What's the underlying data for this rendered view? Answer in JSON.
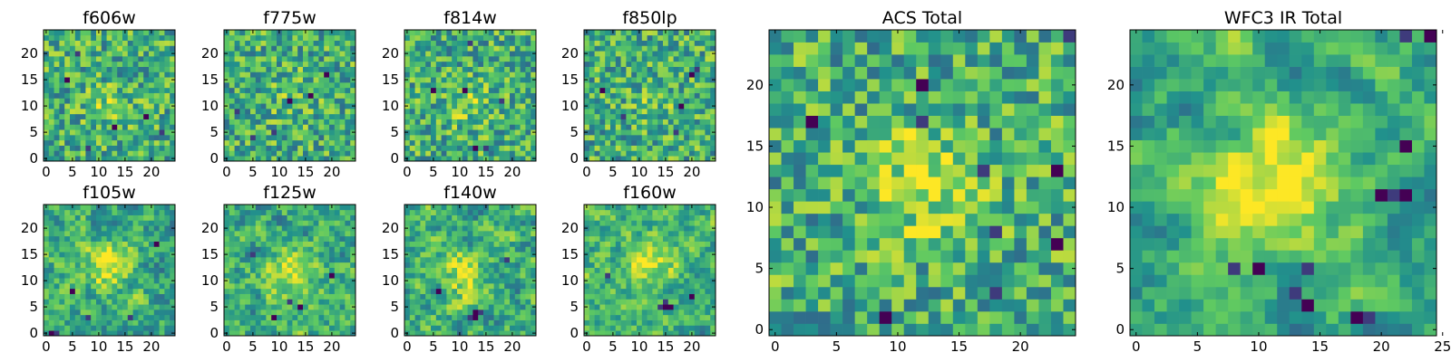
{
  "figure": {
    "background": "#ffffff",
    "colormap": "viridis",
    "colormap_stops": [
      "#440154",
      "#3b528b",
      "#21918c",
      "#5ec962",
      "#fde725"
    ]
  },
  "chart_data": [
    {
      "type": "heatmap",
      "title": "f606w",
      "grid_size": 25,
      "xticks": [
        0,
        5,
        10,
        15,
        20
      ],
      "yticks": [
        0,
        5,
        10,
        15,
        20
      ],
      "xlim": [
        0,
        24
      ],
      "ylim": [
        0,
        24
      ],
      "seed": 11,
      "smooth": 0,
      "blob": [
        12,
        10,
        3,
        0.15
      ],
      "dark_spots": [
        [
          19,
          8
        ],
        [
          8,
          2
        ],
        [
          13,
          6
        ],
        [
          22,
          5
        ],
        [
          4,
          15
        ],
        [
          6,
          20
        ]
      ]
    },
    {
      "type": "heatmap",
      "title": "f775w",
      "grid_size": 25,
      "xticks": [
        0,
        5,
        10,
        15,
        20
      ],
      "yticks": [
        0,
        5,
        10,
        15,
        20
      ],
      "xlim": [
        0,
        24
      ],
      "ylim": [
        0,
        24
      ],
      "seed": 23,
      "smooth": 0,
      "blob": [
        12,
        12,
        3,
        0.1
      ],
      "dark_spots": [
        [
          16,
          12
        ],
        [
          5,
          4
        ],
        [
          12,
          11
        ],
        [
          2,
          9
        ],
        [
          19,
          16
        ],
        [
          9,
          5
        ]
      ]
    },
    {
      "type": "heatmap",
      "title": "f814w",
      "grid_size": 25,
      "xticks": [
        0,
        5,
        10,
        15,
        20
      ],
      "yticks": [
        0,
        5,
        10,
        15,
        20
      ],
      "xlim": [
        0,
        24
      ],
      "ylim": [
        0,
        24
      ],
      "seed": 37,
      "smooth": 0,
      "blob": [
        12,
        10,
        3,
        0.15
      ],
      "dark_spots": [
        [
          13,
          2
        ],
        [
          15,
          2
        ],
        [
          11,
          13
        ],
        [
          18,
          11
        ],
        [
          5,
          13
        ],
        [
          12,
          22
        ]
      ]
    },
    {
      "type": "heatmap",
      "title": "f850lp",
      "grid_size": 25,
      "xticks": [
        0,
        5,
        10,
        15,
        20
      ],
      "yticks": [
        0,
        5,
        10,
        15,
        20
      ],
      "xlim": [
        0,
        24
      ],
      "ylim": [
        0,
        24
      ],
      "seed": 41,
      "smooth": 0,
      "blob": [
        13,
        11,
        3,
        0.1
      ],
      "dark_spots": [
        [
          20,
          16
        ],
        [
          21,
          17
        ],
        [
          18,
          10
        ],
        [
          7,
          8
        ],
        [
          3,
          13
        ],
        [
          17,
          5
        ]
      ]
    },
    {
      "type": "heatmap",
      "title": "f105w",
      "grid_size": 25,
      "xticks": [
        0,
        5,
        10,
        15,
        20
      ],
      "yticks": [
        0,
        5,
        10,
        15,
        20
      ],
      "xlim": [
        0,
        24
      ],
      "ylim": [
        0,
        24
      ],
      "seed": 53,
      "smooth": 1,
      "blob": [
        12,
        13,
        3,
        0.35
      ],
      "dark_spots": [
        [
          1,
          0
        ],
        [
          2,
          0
        ],
        [
          5,
          8
        ],
        [
          16,
          3
        ],
        [
          21,
          17
        ],
        [
          8,
          3
        ]
      ]
    },
    {
      "type": "heatmap",
      "title": "f125w",
      "grid_size": 25,
      "xticks": [
        0,
        5,
        10,
        15,
        20
      ],
      "yticks": [
        0,
        5,
        10,
        15,
        20
      ],
      "xlim": [
        0,
        24
      ],
      "ylim": [
        0,
        24
      ],
      "seed": 61,
      "smooth": 1,
      "blob": [
        12,
        11,
        3,
        0.35
      ],
      "dark_spots": [
        [
          9,
          3
        ],
        [
          12,
          6
        ],
        [
          14,
          5
        ],
        [
          5,
          15
        ],
        [
          20,
          11
        ]
      ]
    },
    {
      "type": "heatmap",
      "title": "f140w",
      "grid_size": 25,
      "xticks": [
        0,
        5,
        10,
        15,
        20
      ],
      "yticks": [
        0,
        5,
        10,
        15,
        20
      ],
      "xlim": [
        0,
        24
      ],
      "ylim": [
        0,
        24
      ],
      "seed": 71,
      "smooth": 1,
      "blob": [
        11,
        11,
        3,
        0.3
      ],
      "dark_spots": [
        [
          13,
          3
        ],
        [
          14,
          4
        ],
        [
          13,
          4
        ],
        [
          12,
          3
        ],
        [
          6,
          8
        ],
        [
          19,
          14
        ]
      ]
    },
    {
      "type": "heatmap",
      "title": "f160w",
      "grid_size": 25,
      "xticks": [
        0,
        5,
        10,
        15,
        20
      ],
      "yticks": [
        0,
        5,
        10,
        15,
        20
      ],
      "xlim": [
        0,
        24
      ],
      "ylim": [
        0,
        24
      ],
      "seed": 83,
      "smooth": 1,
      "blob": [
        12,
        13,
        3,
        0.35
      ],
      "dark_spots": [
        [
          15,
          5
        ],
        [
          14,
          5
        ],
        [
          16,
          5
        ],
        [
          15,
          6
        ],
        [
          20,
          7
        ],
        [
          4,
          11
        ]
      ]
    },
    {
      "type": "heatmap",
      "title": "ACS Total",
      "grid_size": 25,
      "xticks": [
        0,
        5,
        10,
        15,
        20
      ],
      "yticks": [
        0,
        5,
        10,
        15,
        20
      ],
      "xlim": [
        0,
        24
      ],
      "ylim": [
        0,
        24
      ],
      "seed": 97,
      "smooth": 0,
      "blob": [
        12,
        12,
        3,
        0.3
      ],
      "dark_spots": [
        [
          3,
          17
        ],
        [
          12,
          17
        ],
        [
          12,
          20
        ],
        [
          17,
          13
        ],
        [
          23,
          13
        ],
        [
          18,
          8
        ],
        [
          9,
          1
        ],
        [
          18,
          3
        ],
        [
          23,
          7
        ],
        [
          24,
          24
        ]
      ]
    },
    {
      "type": "heatmap",
      "title": "WFC3 IR Total",
      "grid_size": 25,
      "xticks": [
        0,
        5,
        10,
        15,
        20,
        25
      ],
      "yticks": [
        0,
        5,
        10,
        15,
        20
      ],
      "xlim": [
        0,
        24
      ],
      "ylim": [
        0,
        24
      ],
      "seed": 101,
      "smooth": 2,
      "blob": [
        12,
        12,
        3.5,
        0.5
      ],
      "dark_spots": [
        [
          20,
          11
        ],
        [
          21,
          11
        ],
        [
          22,
          11
        ],
        [
          8,
          5
        ],
        [
          10,
          5
        ],
        [
          13,
          3
        ],
        [
          14,
          2
        ],
        [
          14,
          5
        ],
        [
          18,
          1
        ],
        [
          19,
          1
        ],
        [
          22,
          15
        ],
        [
          22,
          24
        ],
        [
          24,
          24
        ]
      ]
    }
  ]
}
